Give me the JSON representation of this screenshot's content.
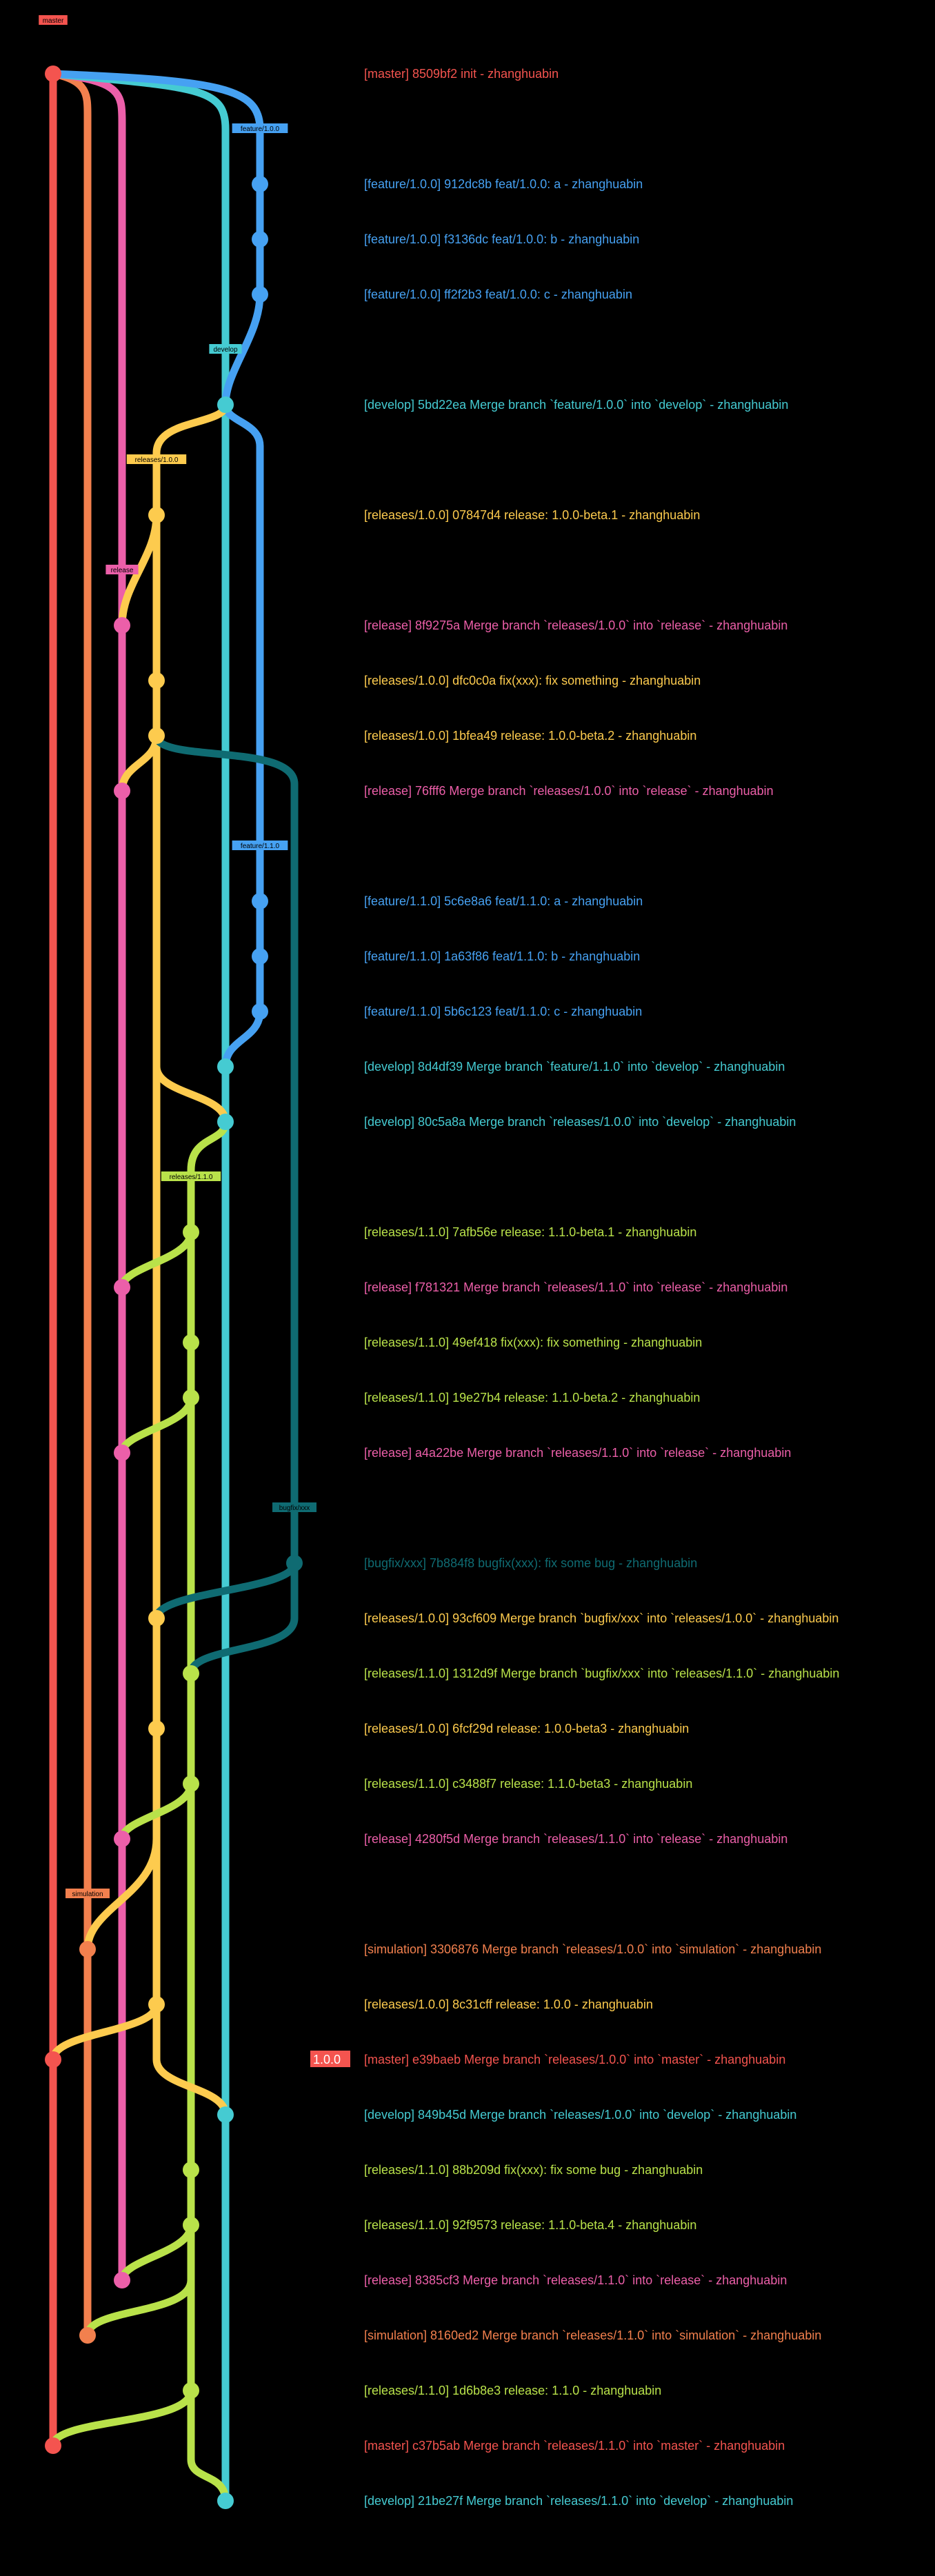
{
  "branches": {
    "master": {
      "label": "master",
      "color": "#f4544f",
      "lane": 0
    },
    "simulation": {
      "label": "simulation",
      "color": "#f2804e",
      "lane": 1
    },
    "release": {
      "label": "release",
      "color": "#ec5fa9",
      "lane": 2
    },
    "rel100": {
      "label": "releases/1.0.0",
      "color": "#fdcb4e",
      "lane": 3
    },
    "rel110": {
      "label": "releases/1.1.0",
      "color": "#b9e24a",
      "lane": 4
    },
    "develop": {
      "label": "develop",
      "color": "#45cbd2",
      "lane": 5
    },
    "feature": {
      "label": "feature/1.0.0",
      "color": "#46a1f2",
      "lane": 6
    },
    "bugfix": {
      "label": "bugfix/xxx",
      "color": "#0f6b72",
      "lane": 7
    }
  },
  "tags": [
    {
      "branch": "master",
      "label": "master",
      "row": -1
    },
    {
      "branch": "feature",
      "label": "feature/1.0.0",
      "row": 1
    },
    {
      "branch": "develop",
      "label": "develop",
      "row": 5
    },
    {
      "branch": "rel100",
      "label": "releases/1.0.0",
      "row": 7
    },
    {
      "branch": "release",
      "label": "release",
      "row": 9
    },
    {
      "branch": "feature",
      "label": "feature/1.1.0",
      "row": 14
    },
    {
      "branch": "rel110",
      "label": "releases/1.1.0",
      "row": 20
    },
    {
      "branch": "bugfix",
      "label": "bugfix/xxx",
      "row": 26
    },
    {
      "branch": "simulation",
      "label": "simulation",
      "row": 33
    }
  ],
  "commits": [
    {
      "row": 0,
      "branch": "master",
      "text": "[master] 8509bf2 init - zhanghuabin"
    },
    {
      "row": 2,
      "branch": "feature",
      "text": "[feature/1.0.0] 912dc8b feat/1.0.0: a - zhanghuabin"
    },
    {
      "row": 3,
      "branch": "feature",
      "text": "[feature/1.0.0] f3136dc feat/1.0.0: b - zhanghuabin"
    },
    {
      "row": 4,
      "branch": "feature",
      "text": "[feature/1.0.0] ff2f2b3 feat/1.0.0: c - zhanghuabin"
    },
    {
      "row": 6,
      "branch": "develop",
      "text": "[develop] 5bd22ea Merge branch `feature/1.0.0` into `develop` - zhanghuabin"
    },
    {
      "row": 8,
      "branch": "rel100",
      "text": "[releases/1.0.0] 07847d4 release: 1.0.0-beta.1 - zhanghuabin"
    },
    {
      "row": 10,
      "branch": "release",
      "text": "[release] 8f9275a Merge branch `releases/1.0.0` into `release` - zhanghuabin"
    },
    {
      "row": 11,
      "branch": "rel100",
      "text": "[releases/1.0.0] dfc0c0a fix(xxx): fix something - zhanghuabin"
    },
    {
      "row": 12,
      "branch": "rel100",
      "text": "[releases/1.0.0] 1bfea49 release: 1.0.0-beta.2 - zhanghuabin"
    },
    {
      "row": 13,
      "branch": "release",
      "text": "[release] 76fff6 Merge branch `releases/1.0.0` into `release` - zhanghuabin"
    },
    {
      "row": 15,
      "branch": "feature",
      "text": "[feature/1.1.0] 5c6e8a6 feat/1.1.0: a - zhanghuabin"
    },
    {
      "row": 16,
      "branch": "feature",
      "text": "[feature/1.1.0] 1a63f86 feat/1.1.0: b - zhanghuabin"
    },
    {
      "row": 17,
      "branch": "feature",
      "text": "[feature/1.1.0] 5b6c123 feat/1.1.0: c - zhanghuabin"
    },
    {
      "row": 18,
      "branch": "develop",
      "text": "[develop] 8d4df39 Merge branch `feature/1.1.0` into `develop` - zhanghuabin"
    },
    {
      "row": 19,
      "branch": "develop",
      "text": "[develop] 80c5a8a Merge branch `releases/1.0.0` into `develop` - zhanghuabin"
    },
    {
      "row": 21,
      "branch": "rel110",
      "text": "[releases/1.1.0] 7afb56e release: 1.1.0-beta.1 - zhanghuabin"
    },
    {
      "row": 22,
      "branch": "release",
      "text": "[release] f781321 Merge branch `releases/1.1.0` into `release` - zhanghuabin"
    },
    {
      "row": 23,
      "branch": "rel110",
      "text": "[releases/1.1.0] 49ef418 fix(xxx): fix something - zhanghuabin"
    },
    {
      "row": 24,
      "branch": "rel110",
      "text": "[releases/1.1.0] 19e27b4 release: 1.1.0-beta.2 - zhanghuabin"
    },
    {
      "row": 25,
      "branch": "release",
      "text": "[release] a4a22be Merge branch `releases/1.1.0` into `release` - zhanghuabin"
    },
    {
      "row": 27,
      "branch": "bugfix",
      "text": "[bugfix/xxx] 7b884f8 bugfix(xxx): fix some bug - zhanghuabin"
    },
    {
      "row": 28,
      "branch": "rel100",
      "text": "[releases/1.0.0] 93cf609 Merge branch `bugfix/xxx` into `releases/1.0.0` - zhanghuabin"
    },
    {
      "row": 29,
      "branch": "rel110",
      "text": "[releases/1.1.0] 1312d9f Merge branch `bugfix/xxx` into `releases/1.1.0` - zhanghuabin"
    },
    {
      "row": 30,
      "branch": "rel100",
      "text": "[releases/1.0.0] 6fcf29d release: 1.0.0-beta3 - zhanghuabin"
    },
    {
      "row": 31,
      "branch": "rel110",
      "text": "[releases/1.1.0] c3488f7 release: 1.1.0-beta3 - zhanghuabin"
    },
    {
      "row": 32,
      "branch": "release",
      "text": "[release] 4280f5d Merge branch `releases/1.1.0` into `release` - zhanghuabin"
    },
    {
      "row": 34,
      "branch": "simulation",
      "text": "[simulation] 3306876 Merge branch `releases/1.0.0` into `simulation` - zhanghuabin"
    },
    {
      "row": 35,
      "branch": "rel100",
      "text": "[releases/1.0.0] 8c31cff release: 1.0.0 - zhanghuabin"
    },
    {
      "row": 36,
      "branch": "master",
      "text": "[master] e39baeb Merge branch `releases/1.0.0` into `master` - zhanghuabin",
      "version": "1.0.0"
    },
    {
      "row": 37,
      "branch": "develop",
      "text": "[develop] 849b45d Merge branch `releases/1.0.0` into `develop` - zhanghuabin"
    },
    {
      "row": 38,
      "branch": "rel110",
      "text": "[releases/1.1.0] 88b209d fix(xxx): fix some bug - zhanghuabin"
    },
    {
      "row": 39,
      "branch": "rel110",
      "text": "[releases/1.1.0] 92f9573 release: 1.1.0-beta.4 - zhanghuabin"
    },
    {
      "row": 40,
      "branch": "release",
      "text": "[release] 8385cf3 Merge branch `releases/1.1.0` into `release` - zhanghuabin"
    },
    {
      "row": 41,
      "branch": "simulation",
      "text": "[simulation] 8160ed2 Merge branch `releases/1.1.0` into `simulation` - zhanghuabin"
    },
    {
      "row": 42,
      "branch": "rel110",
      "text": "[releases/1.1.0] 1d6b8e3 release: 1.1.0 - zhanghuabin"
    },
    {
      "row": 43,
      "branch": "master",
      "text": "[master] c37b5ab Merge branch `releases/1.1.0` into `master` - zhanghuabin"
    },
    {
      "row": 44,
      "branch": "develop",
      "text": "[develop] 21be27f Merge branch `releases/1.1.0` into `develop` - zhanghuabin"
    }
  ],
  "edges": [
    {
      "branch": "master",
      "from": 0,
      "to": 43,
      "kind": "straight"
    },
    {
      "branch": "simulation",
      "from": 0,
      "to": 41,
      "kind": "fork-straight",
      "endRow": 41
    },
    {
      "branch": "release",
      "from": 0,
      "to": 40,
      "kind": "fork-straight"
    },
    {
      "branch": "develop",
      "from": 0,
      "to": 44,
      "kind": "fork-straight"
    },
    {
      "branch": "feature",
      "from": 0,
      "to": 4,
      "kind": "fork-straight"
    },
    {
      "branch": "feature",
      "from": 4,
      "to": 6,
      "kind": "merge",
      "target": "develop"
    },
    {
      "branch": "feature",
      "from": 6,
      "to": 18,
      "kind": "fork-straight-merge",
      "target": "develop"
    },
    {
      "branch": "rel100",
      "from": 6,
      "to": 35,
      "kind": "fork-straight",
      "source": "develop"
    },
    {
      "branch": "rel100",
      "from": 8,
      "to": 10,
      "kind": "merge",
      "target": "release"
    },
    {
      "branch": "rel100",
      "from": 12,
      "to": 13,
      "kind": "merge",
      "target": "release"
    },
    {
      "branch": "bugfix",
      "from": 12,
      "to": 27,
      "kind": "fork-straight",
      "source": "rel100"
    },
    {
      "branch": "rel100",
      "from": 35,
      "to": 37,
      "kind": "merge",
      "target": "develop"
    },
    {
      "branch": "rel100",
      "from": 18,
      "to": 19,
      "kind": "merge",
      "target": "develop"
    },
    {
      "branch": "rel110",
      "from": 19,
      "to": 44,
      "kind": "fork-straight",
      "source": "develop"
    },
    {
      "branch": "rel110",
      "from": 21,
      "to": 22,
      "kind": "merge",
      "target": "release"
    },
    {
      "branch": "rel110",
      "from": 24,
      "to": 25,
      "kind": "merge",
      "target": "release"
    },
    {
      "branch": "bugfix",
      "from": 27,
      "to": 28,
      "kind": "merge",
      "target": "rel100"
    },
    {
      "branch": "bugfix",
      "from": 27,
      "to": 29,
      "kind": "merge-long",
      "target": "rel110"
    },
    {
      "branch": "rel110",
      "from": 31,
      "to": 32,
      "kind": "merge",
      "target": "release"
    },
    {
      "branch": "rel100",
      "from": 32,
      "to": 34,
      "kind": "merge",
      "target": "simulation"
    },
    {
      "branch": "rel100",
      "from": 35,
      "to": 36,
      "kind": "merge",
      "target": "master"
    },
    {
      "branch": "rel110",
      "from": 39,
      "to": 40,
      "kind": "merge",
      "target": "release"
    },
    {
      "branch": "rel110",
      "from": 39,
      "to": 41,
      "kind": "merge",
      "target": "simulation"
    },
    {
      "branch": "rel110",
      "from": 42,
      "to": 43,
      "kind": "merge",
      "target": "master"
    }
  ]
}
